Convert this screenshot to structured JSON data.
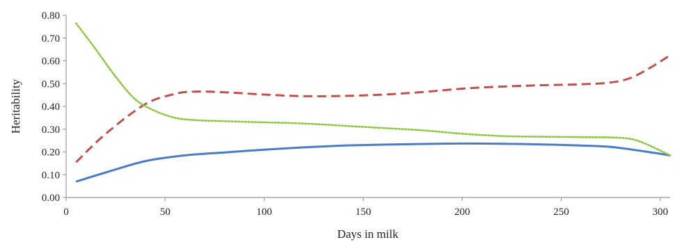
{
  "chart_data": {
    "type": "line",
    "xlabel": "Days in milk",
    "ylabel": "Heritability",
    "xlim": [
      0,
      305
    ],
    "ylim": [
      0,
      0.8
    ],
    "xticks": [
      0,
      50,
      100,
      150,
      200,
      250,
      300
    ],
    "yticks": [
      0.0,
      0.1,
      0.2,
      0.3,
      0.4,
      0.5,
      0.6,
      0.7,
      0.8
    ],
    "xtick_labels": [
      "0",
      "50",
      "100",
      "150",
      "200",
      "250",
      "300"
    ],
    "ytick_labels": [
      "0.00",
      "0.10",
      "0.20",
      "0.30",
      "0.40",
      "0.50",
      "0.60",
      "0.70",
      "0.80"
    ],
    "grid": false,
    "legend": "none",
    "series": [
      {
        "color": "#4a7cc4",
        "style": "solid",
        "x": [
          5,
          20,
          40,
          60,
          80,
          100,
          120,
          140,
          160,
          180,
          200,
          220,
          240,
          260,
          275,
          290,
          305
        ],
        "values": [
          0.07,
          0.11,
          0.16,
          0.185,
          0.198,
          0.21,
          0.22,
          0.228,
          0.232,
          0.235,
          0.237,
          0.236,
          0.233,
          0.228,
          0.222,
          0.205,
          0.185
        ]
      },
      {
        "color": "#c0504d",
        "style": "dashed",
        "x": [
          5,
          20,
          40,
          55,
          65,
          80,
          100,
          120,
          140,
          160,
          180,
          200,
          220,
          240,
          260,
          275,
          285,
          295,
          305
        ],
        "values": [
          0.155,
          0.28,
          0.41,
          0.455,
          0.465,
          0.462,
          0.452,
          0.445,
          0.446,
          0.452,
          0.463,
          0.478,
          0.487,
          0.493,
          0.497,
          0.505,
          0.525,
          0.57,
          0.625
        ]
      },
      {
        "color": "#8cc63f",
        "style": "dotted",
        "x": [
          5,
          15,
          25,
          35,
          45,
          55,
          65,
          80,
          100,
          120,
          140,
          160,
          180,
          200,
          220,
          240,
          260,
          280,
          290,
          305
        ],
        "values": [
          0.765,
          0.65,
          0.53,
          0.43,
          0.38,
          0.35,
          0.34,
          0.335,
          0.33,
          0.325,
          0.315,
          0.305,
          0.295,
          0.28,
          0.27,
          0.267,
          0.265,
          0.262,
          0.245,
          0.185
        ]
      }
    ]
  }
}
